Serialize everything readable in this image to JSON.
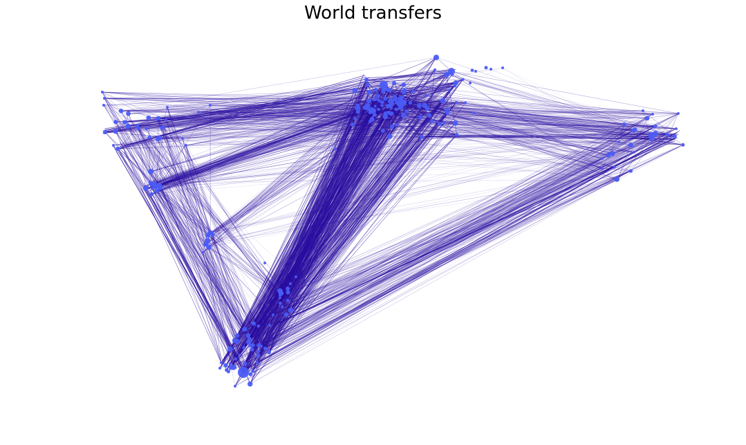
{
  "title": "World transfers",
  "colors": {
    "edge": "#2a0ea0",
    "node": "#4b5cf5",
    "background": "#ffffff"
  }
}
